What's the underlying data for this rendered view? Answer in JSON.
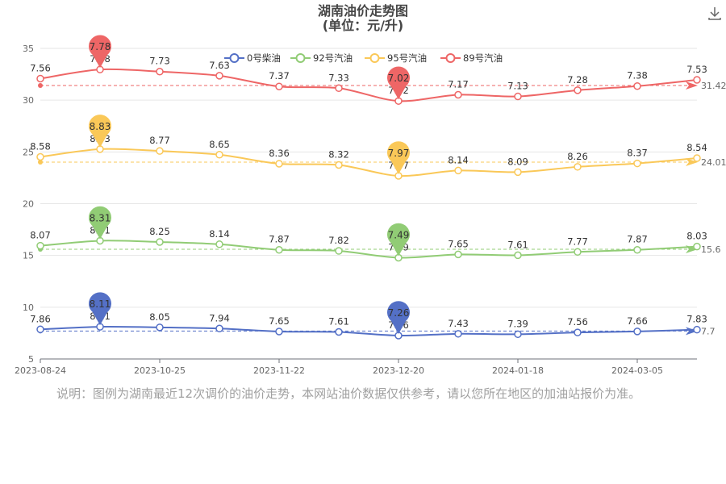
{
  "title_line1": "湖南油价走势图",
  "title_line2": "(单位：元/升)",
  "note": "说明：图例为湖南最近12次调价的油价走势，本网站油价数据仅供参考，请以您所在地区的加油站报价为准。",
  "download_icon": "download-icon",
  "chart_data": {
    "type": "line",
    "x_tick_labels": [
      "2023-08-24",
      "2023-10-25",
      "2023-11-22",
      "2023-12-20",
      "2024-01-18",
      "2024-03-05"
    ],
    "x_tick_index": [
      0,
      2,
      4,
      6,
      8,
      10
    ],
    "ylim": [
      5,
      35
    ],
    "y_ticks": [
      5,
      10,
      15,
      20,
      25,
      30,
      35
    ],
    "grid": true,
    "legend_position": "top-center",
    "series": [
      {
        "name": "0号柴油",
        "color": "#5470c6",
        "prices": [
          7.86,
          8.11,
          8.05,
          7.94,
          7.65,
          7.61,
          7.26,
          7.43,
          7.39,
          7.56,
          7.66,
          7.83
        ],
        "price_label_texts": [
          "7.86",
          "8.11",
          "8.05",
          "7.94",
          "7.65",
          "7.61",
          "7.26",
          "7.43",
          "7.39",
          "7.56",
          "7.66",
          "7.83"
        ],
        "plotted": [
          7.86,
          8.11,
          8.05,
          7.94,
          7.65,
          7.61,
          7.26,
          7.43,
          7.39,
          7.56,
          7.66,
          7.83
        ],
        "max": {
          "text": "8.11",
          "index": 1
        },
        "min": {
          "text": "7.26",
          "index": 6
        },
        "average": {
          "value": 7.7,
          "text": "7.7"
        }
      },
      {
        "name": "92号汽油",
        "color": "#91cc75",
        "prices": [
          8.07,
          8.31,
          8.25,
          8.14,
          7.87,
          7.82,
          7.49,
          7.65,
          7.61,
          7.77,
          7.87,
          8.03
        ],
        "price_label_texts": [
          "8.07",
          "8.31",
          "8.25",
          "8.14",
          "7.87",
          "7.82",
          "7.49",
          "7.65",
          "7.61",
          "7.77",
          "7.87",
          "8.03"
        ],
        "plotted": [
          15.94,
          16.42,
          16.3,
          16.08,
          15.54,
          15.44,
          14.78,
          15.1,
          15.02,
          15.34,
          15.54,
          15.86
        ],
        "max": {
          "text": "8.31",
          "index": 1
        },
        "min": {
          "text": "7.49",
          "index": 6
        },
        "average": {
          "value": 15.6,
          "text": "15.6"
        }
      },
      {
        "name": "95号汽油",
        "color": "#fac858",
        "prices": [
          8.58,
          8.83,
          8.77,
          8.65,
          8.36,
          8.32,
          7.97,
          8.14,
          8.09,
          8.26,
          8.37,
          8.54
        ],
        "price_label_texts": [
          "8.58",
          "8.83",
          "8.77",
          "8.65",
          "8.36",
          "8.32",
          "7.97",
          "8.14",
          "8.09",
          "8.26",
          "8.37",
          "8.54"
        ],
        "plotted": [
          24.52,
          25.27,
          25.09,
          24.73,
          23.86,
          23.74,
          22.69,
          23.2,
          23.05,
          23.56,
          23.89,
          24.4
        ],
        "max": {
          "text": "8.83",
          "index": 1
        },
        "min": {
          "text": "7.97",
          "index": 6
        },
        "average": {
          "value": 24.01,
          "text": "24.01"
        }
      },
      {
        "name": "89号汽油",
        "color": "#ee6666",
        "prices": [
          7.56,
          7.78,
          7.73,
          7.63,
          7.37,
          7.33,
          7.02,
          7.17,
          7.13,
          7.28,
          7.38,
          7.53
        ],
        "price_label_texts": [
          "7.56",
          "7.78",
          "7.73",
          "7.63",
          "7.37",
          "7.33",
          "7.02",
          "7.17",
          "7.13",
          "7.28",
          "7.38",
          "7.53"
        ],
        "plotted": [
          32.08,
          32.96,
          32.76,
          32.36,
          31.32,
          31.16,
          29.92,
          30.52,
          30.36,
          30.96,
          31.36,
          31.96
        ],
        "max": {
          "text": "7.78",
          "index": 1
        },
        "min": {
          "text": "7.02",
          "index": 6
        },
        "average": {
          "value": 31.42,
          "text": "31.42"
        }
      }
    ]
  }
}
